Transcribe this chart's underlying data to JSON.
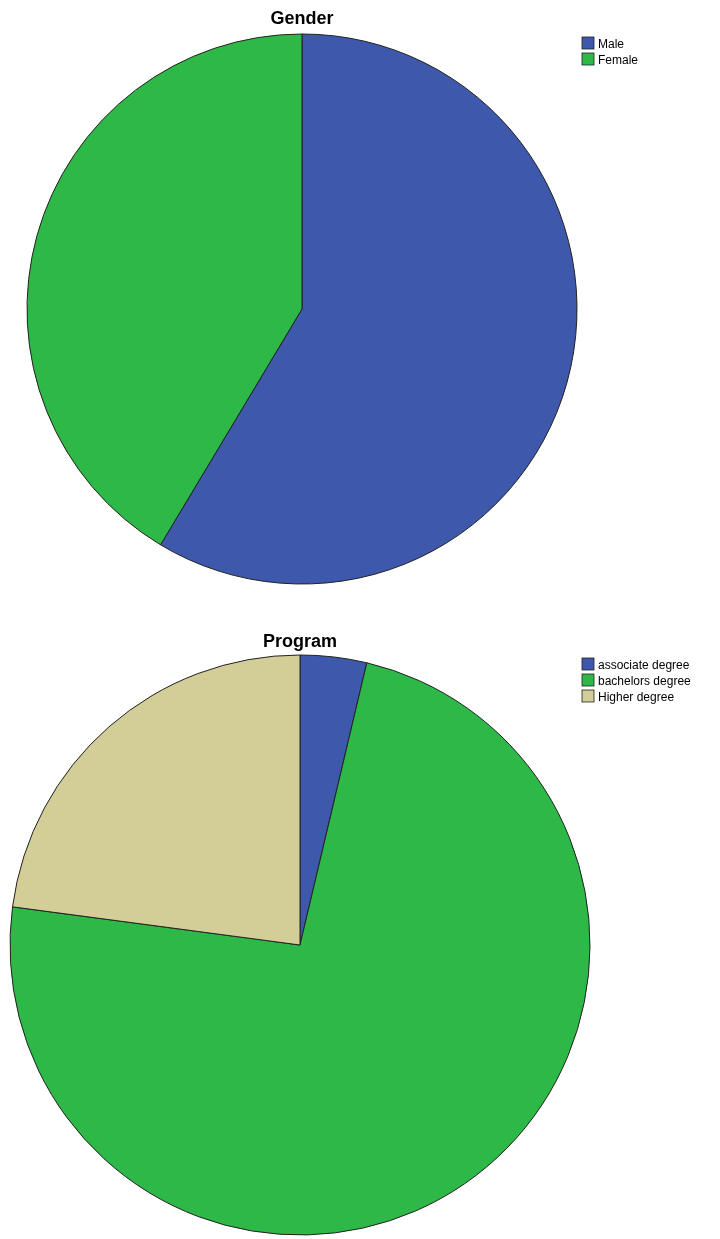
{
  "chart_data": [
    {
      "type": "pie",
      "title": "Gender",
      "categories": [
        "Male",
        "Female"
      ],
      "values": [
        58.6,
        41.4
      ],
      "colors": [
        "#3e58ac",
        "#2eb848"
      ],
      "legend": "top right"
    },
    {
      "type": "pie",
      "title": "Program",
      "categories": [
        "associate degree",
        "bachelors degree",
        "Higher degree"
      ],
      "values": [
        3.7,
        73.4,
        22.9
      ],
      "colors": [
        "#3e58ac",
        "#2eb848",
        "#d3ce97"
      ],
      "legend": "top right"
    }
  ]
}
